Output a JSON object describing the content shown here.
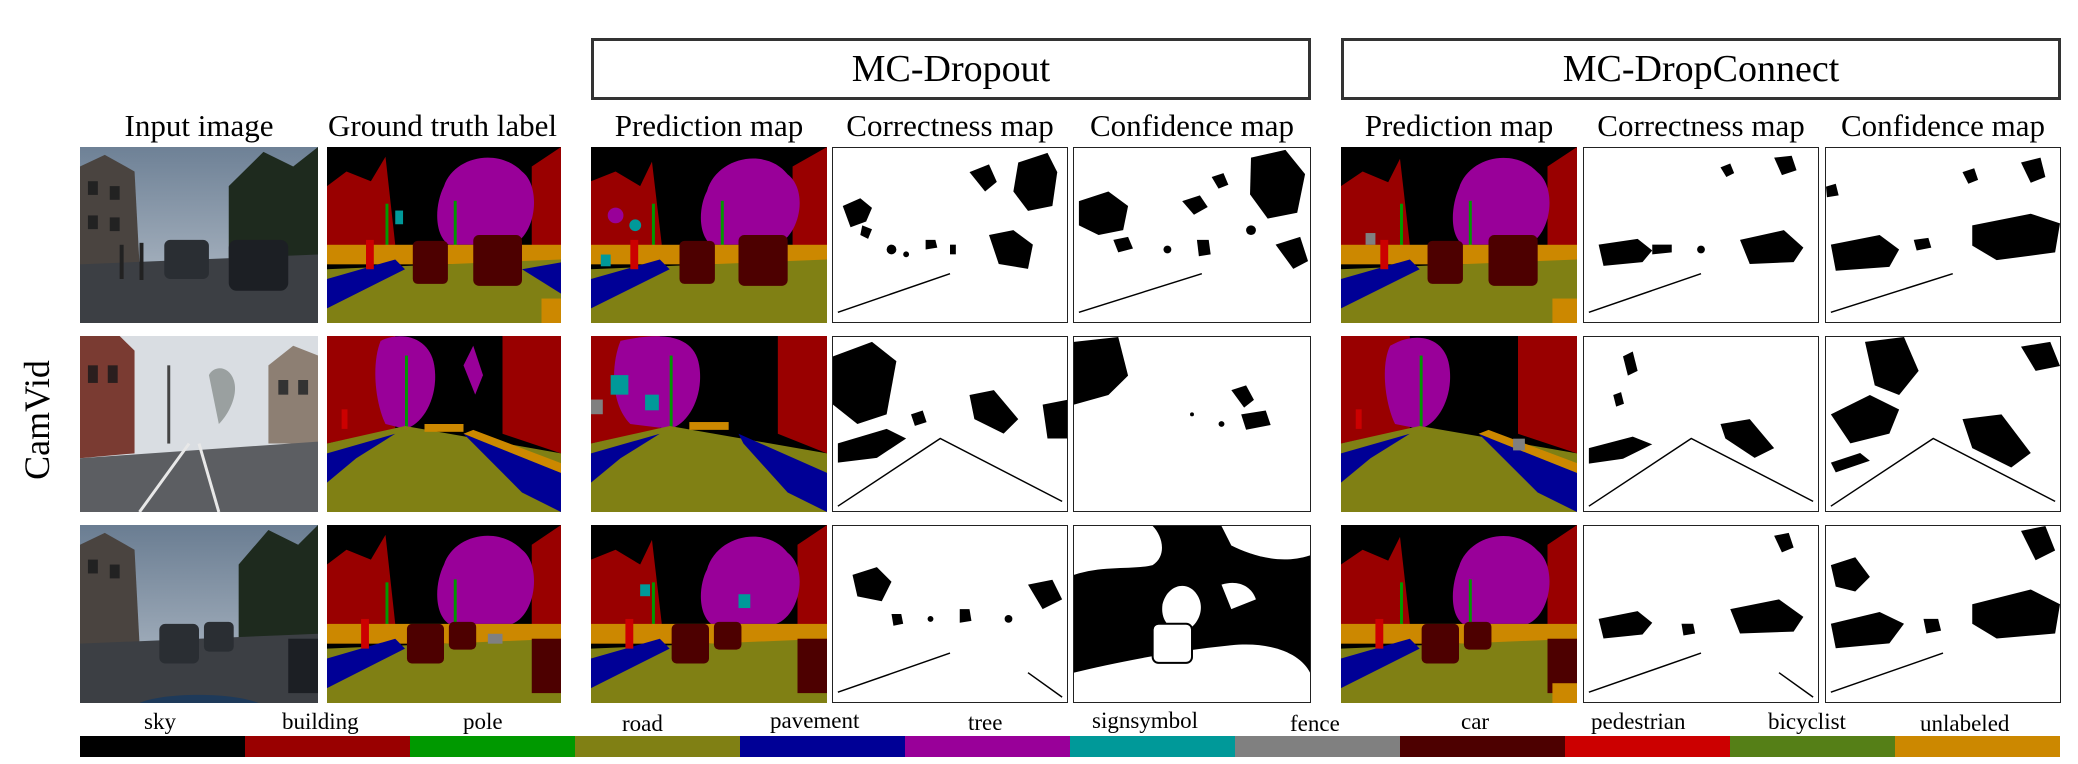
{
  "groups": {
    "dropout": "MC-Dropout",
    "dropconnect": "MC-DropConnect"
  },
  "columns": {
    "input": "Input image",
    "ground_truth": "Ground truth label",
    "dropout_prediction": "Prediction map",
    "dropout_correctness": "Correctness map",
    "dropout_confidence": "Confidence map",
    "dropconnect_prediction": "Prediction map",
    "dropconnect_correctness": "Correctness map",
    "dropconnect_confidence": "Confidence map"
  },
  "row_label": "CamVid",
  "legend": [
    {
      "label": "sky",
      "color": "#000000"
    },
    {
      "label": "building",
      "color": "#990000"
    },
    {
      "label": "pole",
      "color": "#009900"
    },
    {
      "label": "road",
      "color": "#808014"
    },
    {
      "label": "pavement",
      "color": "#000096"
    },
    {
      "label": "tree",
      "color": "#990099"
    },
    {
      "label": "signsymbol",
      "color": "#009999"
    },
    {
      "label": "fence",
      "color": "#808080"
    },
    {
      "label": "car",
      "color": "#4d0000"
    },
    {
      "label": "pedestrian",
      "color": "#cc0000"
    },
    {
      "label": "bicyclist",
      "color": "#557f17"
    },
    {
      "label": "unlabeled",
      "color": "#cc8800"
    }
  ]
}
